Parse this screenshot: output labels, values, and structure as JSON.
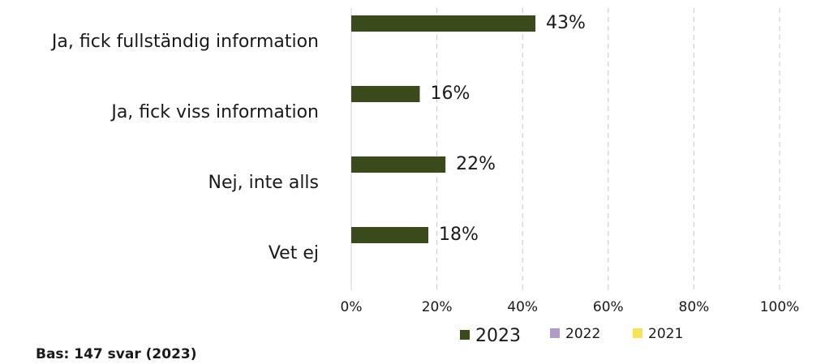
{
  "chart_data": {
    "type": "hbar",
    "categories": [
      "Ja, fick fullständig information",
      "Ja, fick viss information",
      "Nej, inte alls",
      "Vet ej"
    ],
    "series": [
      {
        "name": "2023",
        "color": "#3a4a1b",
        "values": [
          43,
          16,
          22,
          18
        ],
        "value_labels": [
          "43%",
          "16%",
          "22%",
          "18%"
        ]
      },
      {
        "name": "2022",
        "color": "#b19cc9",
        "values": [
          null,
          null,
          null,
          null
        ]
      },
      {
        "name": "2021",
        "color": "#f6e35a",
        "values": [
          null,
          null,
          null,
          null
        ]
      }
    ],
    "xlim": [
      0,
      100
    ],
    "xticks": [
      {
        "value": 0,
        "label": "0%"
      },
      {
        "value": 20,
        "label": "20%"
      },
      {
        "value": 40,
        "label": "40%"
      },
      {
        "value": 60,
        "label": "60%"
      },
      {
        "value": 80,
        "label": "80%"
      },
      {
        "value": 100,
        "label": "100%"
      }
    ],
    "grid": true,
    "legend": "bottom",
    "footnote": "Bas: 147 svar (2023)"
  }
}
